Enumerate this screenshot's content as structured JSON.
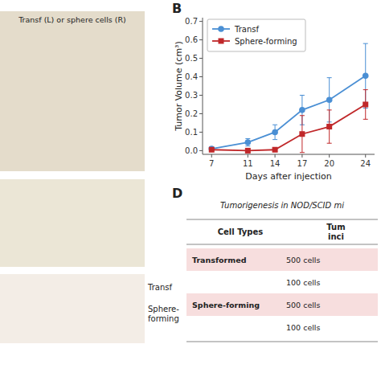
{
  "chart_data": {
    "type": "line",
    "x": [
      7,
      11,
      14,
      17,
      20,
      24
    ],
    "xlabel": "Days after injection",
    "ylabel": "Tumor Volume (cm³)",
    "xlim": [
      6,
      25
    ],
    "xticks": [
      7,
      11,
      14,
      17,
      20,
      24
    ],
    "ylim": [
      -0.02,
      0.72
    ],
    "yticks": [
      {
        "value": 0.0,
        "label": "0.0"
      },
      0.1,
      0.2,
      0.3,
      0.4,
      0.5,
      0.6,
      0.7
    ],
    "grid": false,
    "legend": "upper left",
    "series": [
      {
        "name": "Transf",
        "color": "#4a8fd4",
        "marker": "circle",
        "values": [
          0.01,
          0.045,
          0.1,
          0.22,
          0.275,
          0.405
        ],
        "errors": [
          0.01,
          0.02,
          0.04,
          0.08,
          0.12,
          0.175
        ]
      },
      {
        "name": "Sphere-forming",
        "color": "#c0282a",
        "marker": "square",
        "values": [
          0.005,
          0.0,
          0.005,
          0.09,
          0.13,
          0.25
        ],
        "errors": [
          0.005,
          0.01,
          0.01,
          0.1,
          0.09,
          0.08
        ]
      }
    ],
    "annotations": [
      "B",
      "D",
      "Transf (L) or sphere cells (R)",
      "Transf",
      "Sphere-\nforming",
      "Tumorigenesis in NOD/SCID mi",
      "Cell Types",
      "Tum\ninci",
      "Transformed",
      "500 cells",
      "100 cells",
      "Sphere-forming",
      "500 cells",
      "100 cells"
    ]
  }
}
